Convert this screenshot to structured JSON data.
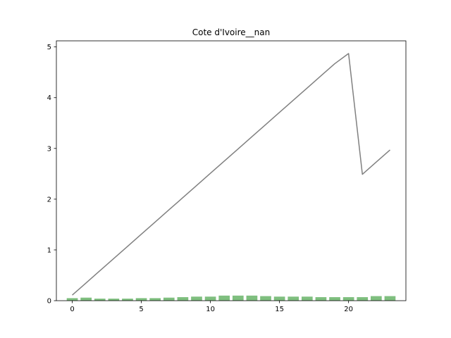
{
  "chart_data": {
    "type": "bar+line",
    "title": "Cote d'Ivoire__nan",
    "xlabel": "",
    "ylabel": "",
    "xlim": [
      -1.15,
      24.15
    ],
    "ylim": [
      0,
      5.12
    ],
    "xticks": [
      0,
      5,
      10,
      15,
      20
    ],
    "yticks": [
      0,
      1,
      2,
      3,
      4,
      5
    ],
    "grid": false,
    "bars": {
      "color": "#7fbf7f",
      "x": [
        0,
        1,
        2,
        3,
        4,
        5,
        6,
        7,
        8,
        9,
        10,
        11,
        12,
        13,
        14,
        15,
        16,
        17,
        18,
        19,
        20,
        21,
        22,
        23
      ],
      "values": [
        0.05,
        0.06,
        0.04,
        0.04,
        0.04,
        0.05,
        0.05,
        0.06,
        0.07,
        0.08,
        0.08,
        0.1,
        0.1,
        0.1,
        0.09,
        0.08,
        0.08,
        0.08,
        0.07,
        0.07,
        0.07,
        0.07,
        0.09,
        0.09
      ]
    },
    "line": {
      "color": "#808080",
      "x": [
        0,
        1,
        2,
        3,
        4,
        5,
        6,
        7,
        8,
        9,
        10,
        11,
        12,
        13,
        14,
        15,
        16,
        17,
        18,
        19,
        20,
        21,
        22,
        23
      ],
      "values": [
        0.11,
        0.35,
        0.59,
        0.83,
        1.07,
        1.31,
        1.55,
        1.79,
        2.03,
        2.27,
        2.51,
        2.75,
        2.99,
        3.23,
        3.47,
        3.71,
        3.95,
        4.19,
        4.43,
        4.67,
        4.87,
        2.49,
        2.73,
        2.97
      ]
    }
  }
}
